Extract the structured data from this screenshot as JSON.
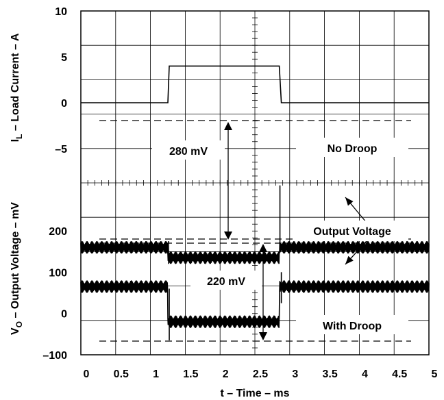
{
  "chart_data": {
    "type": "line",
    "xlabel": "t – Time – ms",
    "x_ticks": [
      "0",
      "0.5",
      "1",
      "1.5",
      "2",
      "2.5",
      "3",
      "3.5",
      "4",
      "4.5",
      "5"
    ],
    "xlim": [
      0,
      5
    ],
    "upper_axis": {
      "ylabel_main": "I",
      "ylabel_sub": "L",
      "ylabel_rest": " – Load Current – A",
      "y_ticks": [
        "10",
        "5",
        "0",
        "–5"
      ],
      "ylim": [
        -7.5,
        10
      ]
    },
    "lower_axis": {
      "ylabel_main": "V",
      "ylabel_sub": "O",
      "ylabel_rest": " – Output Voltage – mV",
      "y_ticks": [
        "200",
        "100",
        "0",
        "–100"
      ],
      "ylim": [
        -100,
        250
      ]
    },
    "series": [
      {
        "name": "Load Current",
        "points": [
          [
            0,
            0
          ],
          [
            1.25,
            0
          ],
          [
            1.27,
            4
          ],
          [
            2.85,
            4
          ],
          [
            2.88,
            0
          ],
          [
            5,
            0
          ]
        ]
      },
      {
        "name": "No Droop",
        "baseline": 160,
        "step": -25,
        "step_start": 1.25,
        "step_end": 2.85,
        "ripple_pp": 30
      },
      {
        "name": "With Droop",
        "baseline": 65,
        "step": -85,
        "step_start": 1.25,
        "step_end": 2.85,
        "ripple_pp": 30
      }
    ],
    "annotations": {
      "no_droop_delta": "280 mV",
      "with_droop_delta": "220 mV",
      "no_droop": "No Droop",
      "output_voltage": "Output Voltage",
      "with_droop": "With Droop"
    }
  }
}
